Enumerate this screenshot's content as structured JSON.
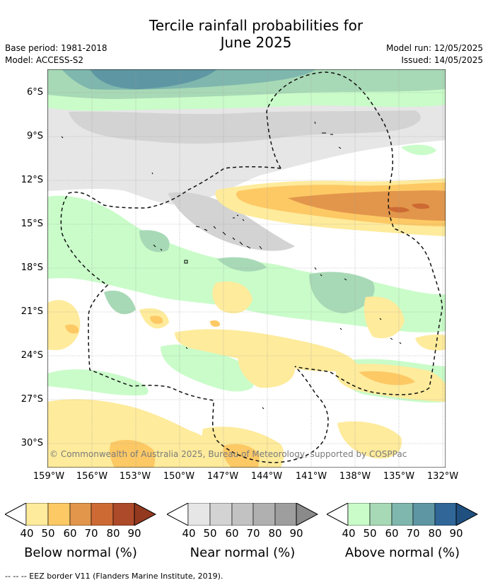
{
  "title": {
    "line1": "Tercile rainfall probabilities for",
    "line2": "June 2025"
  },
  "meta": {
    "base_period": "Base period: 1981-2018",
    "model": "Model: ACCESS-S2",
    "model_run": "Model run: 12/05/2025",
    "issued": "Issued: 14/05/2025"
  },
  "map": {
    "lat_labels": [
      "6°S",
      "9°S",
      "12°S",
      "15°S",
      "18°S",
      "21°S",
      "24°S",
      "27°S",
      "30°S"
    ],
    "lon_labels": [
      "159°W",
      "156°W",
      "153°W",
      "150°W",
      "147°W",
      "144°W",
      "141°W",
      "138°W",
      "135°W",
      "132°W"
    ],
    "copyright": "© Commonwealth of Australia 2025, Bureau of Meteorology, supported by COSPPac",
    "colors": {
      "below": [
        "#feeb9c",
        "#fdc965",
        "#e2964b",
        "#cd6a34",
        "#ad4a29",
        "#93391f"
      ],
      "near": [
        "#e6e6e6",
        "#d3d3d3",
        "#c2c2c2",
        "#b0b0b0",
        "#9e9e9e",
        "#8a8a8a"
      ],
      "above": [
        "#c9fcc9",
        "#a8d9b6",
        "#7fb7ae",
        "#5e97a3",
        "#306798",
        "#1f5080"
      ]
    }
  },
  "legend": {
    "ticks": [
      "40",
      "50",
      "60",
      "70",
      "80",
      "90"
    ],
    "below_title": "Below normal (%)",
    "near_title": "Near normal (%)",
    "above_title": "Above normal (%)"
  },
  "footer": "--  --  -- EEZ border V11 (Flanders Marine Institute, 2019)."
}
